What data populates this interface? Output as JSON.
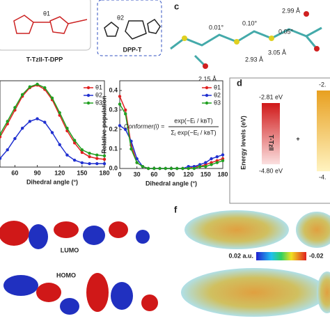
{
  "panel_a": {
    "molecules": [
      "T-TzII-T-DPP",
      "DPP-T"
    ],
    "angles": [
      "θ1",
      "θ2"
    ]
  },
  "panel_c": {
    "label": "c",
    "angles": [
      "0.01°",
      "0.10°",
      "0.05°"
    ],
    "distances": [
      "2.99 Å",
      "2.93 Å",
      "3.05 Å",
      "2.15 Å"
    ]
  },
  "chart_data": [
    {
      "type": "line",
      "xlabel": "Dihedral angle (°)",
      "x": [
        40,
        50,
        60,
        70,
        80,
        90,
        100,
        110,
        120,
        130,
        140,
        150,
        160,
        170,
        180
      ],
      "xlim": [
        40,
        180
      ],
      "xticks": [
        60,
        90,
        120,
        150,
        180
      ],
      "ylim": [
        0,
        1
      ],
      "series": [
        {
          "name": "θ1",
          "color": "#e02020",
          "values": [
            0.35,
            0.5,
            0.66,
            0.82,
            0.92,
            0.95,
            0.9,
            0.78,
            0.6,
            0.42,
            0.28,
            0.17,
            0.12,
            0.1,
            0.09
          ]
        },
        {
          "name": "θ2",
          "color": "#2030d0",
          "values": [
            0.1,
            0.2,
            0.33,
            0.45,
            0.53,
            0.56,
            0.52,
            0.4,
            0.26,
            0.14,
            0.08,
            0.05,
            0.04,
            0.04,
            0.04
          ]
        },
        {
          "name": "θ3",
          "color": "#20a020",
          "values": [
            0.38,
            0.53,
            0.69,
            0.84,
            0.93,
            0.96,
            0.92,
            0.8,
            0.63,
            0.45,
            0.31,
            0.2,
            0.16,
            0.14,
            0.13
          ]
        }
      ]
    },
    {
      "type": "line",
      "xlabel": "Dihedral angle (°)",
      "ylabel": "Relative population",
      "x": [
        0,
        10,
        20,
        30,
        40,
        50,
        60,
        70,
        80,
        90,
        100,
        110,
        120,
        130,
        140,
        150,
        160,
        170,
        180
      ],
      "xlim": [
        0,
        180
      ],
      "xticks": [
        0,
        30,
        60,
        90,
        120,
        150,
        180
      ],
      "ylim": [
        0,
        0.45
      ],
      "yticks": [
        {
          "value": 0,
          "label": "0.0"
        },
        0.1,
        0.2,
        0.3,
        0.4
      ],
      "formula": {
        "lhs": "Conformer(i) =",
        "numerator": "exp(−Eᵢ / kʙT)",
        "denominator": "Σⱼ exp(−Eⱼ / kʙT)"
      },
      "series": [
        {
          "name": "θ1",
          "color": "#e02020",
          "values": [
            0.37,
            0.3,
            0.12,
            0.03,
            0.01,
            0.0,
            0.0,
            0.0,
            0.0,
            0.0,
            0.0,
            0.0,
            0.0,
            0.01,
            0.01,
            0.02,
            0.03,
            0.04,
            0.05
          ]
        },
        {
          "name": "θ2",
          "color": "#2030d0",
          "values": [
            0.22,
            0.2,
            0.14,
            0.05,
            0.01,
            0.0,
            0.0,
            0.0,
            0.0,
            0.0,
            0.0,
            0.0,
            0.01,
            0.01,
            0.02,
            0.03,
            0.05,
            0.06,
            0.07
          ]
        },
        {
          "name": "θ3",
          "color": "#20a020",
          "values": [
            0.33,
            0.28,
            0.1,
            0.03,
            0.01,
            0.0,
            0.0,
            0.0,
            0.0,
            0.0,
            0.0,
            0.0,
            0.0,
            0.0,
            0.01,
            0.01,
            0.02,
            0.03,
            0.04
          ]
        }
      ]
    }
  ],
  "panel_d": {
    "label": "d",
    "ylabel": "Energy levels (eV)",
    "lumo": "-2.81 eV",
    "homo": "-4.80 eV",
    "name": "T-TzII",
    "lumo2": "-2.",
    "homo2": "-4.",
    "plus": "+"
  },
  "panel_e": {
    "orbitals": [
      "LUMO",
      "HOMO"
    ]
  },
  "panel_f": {
    "label": "f",
    "colorbar": [
      "0.02 a.u.",
      "-0.02"
    ]
  }
}
